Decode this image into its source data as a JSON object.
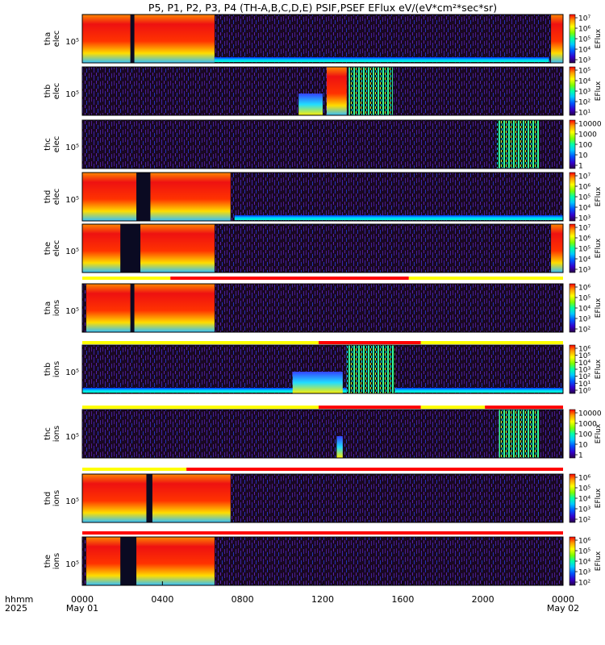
{
  "chart_data": {
    "type": "heatmap",
    "title": "P5, P1, P2, P3, P4 (TH-A,B,C,D,E) PSIF,PSEF EFlux eV/(eV*cm²*sec*sr)",
    "x": {
      "units_label": "hhmm",
      "year_label": "2025",
      "ticks": [
        "0000",
        "0400",
        "0800",
        "1200",
        "1600",
        "2000",
        "0000"
      ],
      "tick_hours": [
        0,
        4,
        8,
        12,
        16,
        20,
        24
      ],
      "date_labels": [
        {
          "hour": 0,
          "text": "May 01"
        },
        {
          "hour": 24,
          "text": "May 02"
        }
      ],
      "range_hours": [
        0,
        24
      ]
    },
    "panels": [
      {
        "probe": "tha",
        "species": "elec",
        "ylabel_line1": "tha",
        "ylabel_line2": "elec",
        "y_tick": "10⁵",
        "colorbar_label": "EFlux",
        "colorbar_ticks": [
          "10⁷",
          "10⁶",
          "10⁵",
          "10⁴",
          "10³"
        ],
        "activity": [
          {
            "type": "hot",
            "start": 0.0,
            "end": 6.6
          },
          {
            "type": "gap",
            "start": 2.4,
            "end": 2.6
          },
          {
            "type": "band",
            "start": 6.6,
            "end": 23.3
          },
          {
            "type": "hot",
            "start": 23.4,
            "end": 24.0
          }
        ]
      },
      {
        "probe": "thb",
        "species": "elec",
        "ylabel_line1": "thb",
        "ylabel_line2": "elec",
        "y_tick": "10⁵",
        "colorbar_label": "EFlux",
        "colorbar_ticks": [
          "10⁵",
          "10⁴",
          "10³",
          "10²",
          "10¹"
        ],
        "activity": [
          {
            "type": "warm",
            "start": 10.8,
            "end": 12.0
          },
          {
            "type": "hot",
            "start": 12.2,
            "end": 13.2
          },
          {
            "type": "burst",
            "start": 13.3,
            "end": 15.5
          }
        ]
      },
      {
        "probe": "thc",
        "species": "elec",
        "ylabel_line1": "thc",
        "ylabel_line2": "elec",
        "y_tick": "10⁵",
        "colorbar_label": "",
        "colorbar_ticks": [
          "10000",
          "1000",
          "100",
          "10",
          "1"
        ],
        "activity": [
          {
            "type": "burst",
            "start": 20.7,
            "end": 22.8
          }
        ]
      },
      {
        "probe": "thd",
        "species": "elec",
        "ylabel_line1": "thd",
        "ylabel_line2": "elec",
        "y_tick": "10⁵",
        "colorbar_label": "EFlux",
        "colorbar_ticks": [
          "10⁷",
          "10⁶",
          "10⁵",
          "10⁴",
          "10³"
        ],
        "activity": [
          {
            "type": "hot",
            "start": 0.0,
            "end": 7.4
          },
          {
            "type": "gap",
            "start": 2.7,
            "end": 3.4
          },
          {
            "type": "band",
            "start": 7.6,
            "end": 24.0
          }
        ]
      },
      {
        "probe": "the",
        "species": "elec",
        "ylabel_line1": "the",
        "ylabel_line2": "elec",
        "y_tick": "10⁵",
        "colorbar_label": "EFlux",
        "colorbar_ticks": [
          "10⁷",
          "10⁶",
          "10⁵",
          "10⁴",
          "10³"
        ],
        "activity": [
          {
            "type": "hot",
            "start": 0.0,
            "end": 6.6
          },
          {
            "type": "gap",
            "start": 1.9,
            "end": 2.9
          },
          {
            "type": "hot",
            "start": 23.4,
            "end": 24.0
          }
        ]
      },
      {
        "probe": "tha",
        "species": "ions",
        "ylabel_line1": "tha",
        "ylabel_line2": "ions",
        "y_tick": "10⁵",
        "colorbar_label": "EFlux",
        "colorbar_ticks": [
          "10⁶",
          "10⁵",
          "10⁴",
          "10³",
          "10²"
        ],
        "activity": [
          {
            "type": "hot",
            "start": 0.2,
            "end": 6.6
          },
          {
            "type": "gap",
            "start": 2.4,
            "end": 2.6
          }
        ]
      },
      {
        "probe": "thb",
        "species": "ions",
        "ylabel_line1": "thb",
        "ylabel_line2": "ions",
        "y_tick": "10⁵",
        "colorbar_label": "EFlux",
        "colorbar_ticks": [
          "10⁶",
          "10⁵",
          "10⁴",
          "10³",
          "10²",
          "10¹",
          "10⁰"
        ],
        "activity": [
          {
            "type": "band",
            "start": 0.0,
            "end": 24.0
          },
          {
            "type": "warm",
            "start": 10.5,
            "end": 13.0
          },
          {
            "type": "burst",
            "start": 13.2,
            "end": 15.6
          }
        ]
      },
      {
        "probe": "thc",
        "species": "ions",
        "ylabel_line1": "thc",
        "ylabel_line2": "ions",
        "y_tick": "10⁵",
        "colorbar_label": "EFlux",
        "colorbar_ticks": [
          "10000",
          "1000",
          "100",
          "10",
          "1"
        ],
        "activity": [
          {
            "type": "warm",
            "start": 12.7,
            "end": 13.0
          },
          {
            "type": "burst",
            "start": 20.8,
            "end": 22.8
          }
        ]
      },
      {
        "probe": "thd",
        "species": "ions",
        "ylabel_line1": "thd",
        "ylabel_line2": "ions",
        "y_tick": "10⁵",
        "colorbar_label": "EFlux",
        "colorbar_ticks": [
          "10⁶",
          "10⁵",
          "10⁴",
          "10³",
          "10²"
        ],
        "activity": [
          {
            "type": "hot",
            "start": 0.0,
            "end": 7.4
          },
          {
            "type": "gap",
            "start": 3.2,
            "end": 3.5
          }
        ]
      },
      {
        "probe": "the",
        "species": "ions",
        "ylabel_line1": "the",
        "ylabel_line2": "ions",
        "y_tick": "10⁵",
        "colorbar_label": "EFlux",
        "colorbar_ticks": [
          "10⁶",
          "10⁵",
          "10⁴",
          "10³",
          "10²"
        ],
        "activity": [
          {
            "type": "hot",
            "start": 0.2,
            "end": 6.6
          },
          {
            "type": "gap",
            "start": 1.9,
            "end": 2.7
          }
        ]
      }
    ],
    "mode_bars": [
      {
        "segments": [
          {
            "color": "#ffff00",
            "start": 0.0,
            "end": 4.4
          },
          {
            "color": "#ff0000",
            "start": 4.4,
            "end": 16.3
          },
          {
            "color": "#ffff00",
            "start": 16.3,
            "end": 24.0
          }
        ]
      },
      {
        "segments": [
          {
            "color": "#ffff00",
            "start": 0.0,
            "end": 11.8
          },
          {
            "color": "#ff0000",
            "start": 11.8,
            "end": 16.9
          },
          {
            "color": "#ffff00",
            "start": 16.9,
            "end": 24.0
          }
        ]
      },
      {
        "segments": [
          {
            "color": "#ffff00",
            "start": 0.0,
            "end": 11.8
          },
          {
            "color": "#ff0000",
            "start": 11.8,
            "end": 16.9
          },
          {
            "color": "#ffff00",
            "start": 16.9,
            "end": 20.1
          },
          {
            "color": "#ff0000",
            "start": 20.1,
            "end": 24.0
          }
        ]
      },
      {
        "segments": [
          {
            "color": "#ffff00",
            "start": 0.0,
            "end": 5.2
          },
          {
            "color": "#ff0000",
            "start": 5.2,
            "end": 24.0
          }
        ]
      },
      {
        "segments": [
          {
            "color": "#ff0000",
            "start": 0.0,
            "end": 24.0
          }
        ]
      }
    ]
  }
}
